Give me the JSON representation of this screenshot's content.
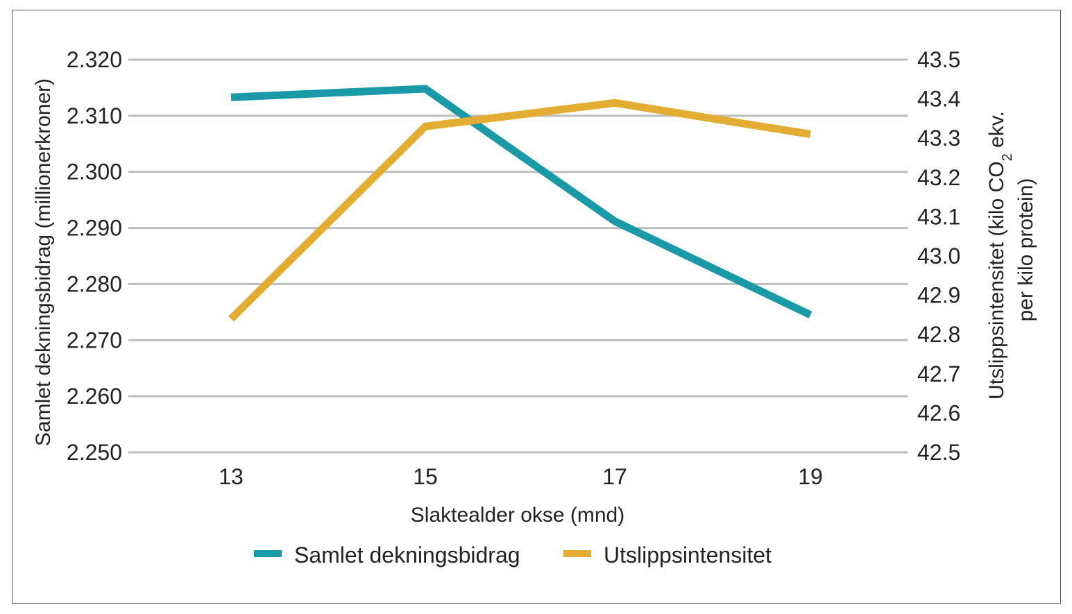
{
  "chart_data": {
    "type": "line",
    "x": [
      13,
      15,
      17,
      19
    ],
    "xlabel": "Slaktealder okse (mnd)",
    "ylabel_left": "Samlet dekningsbidrag (millionerkroner)",
    "ylabel_right_line1": "Utslippsintensitet (kilo CO",
    "ylabel_right_sub": "2",
    "ylabel_right_line1_end": " ekv.",
    "ylabel_right_line2": "per kilo protein)",
    "ylim_left": [
      2.25,
      2.32
    ],
    "ylim_right": [
      42.5,
      43.5
    ],
    "y_ticks_left": [
      "2.320",
      "2.310",
      "2.300",
      "2.290",
      "2.280",
      "2.270",
      "2.260",
      "2.250"
    ],
    "y_ticks_right": [
      "43.5",
      "43.4",
      "43.3",
      "43.2",
      "43.1",
      "43.0",
      "42.9",
      "42.8",
      "42.7",
      "42.6",
      "42.5"
    ],
    "x_ticks": [
      "13",
      "15",
      "17",
      "19"
    ],
    "grid": true,
    "legend_position": "bottom",
    "series": [
      {
        "name": "Samlet dekningsbidrag",
        "axis": "left",
        "color": "#1a9aa6",
        "values": [
          2.3133,
          2.3148,
          2.2912,
          2.2745
        ]
      },
      {
        "name": "Utslippsintensitet",
        "axis": "right",
        "color": "#e3ad33",
        "values": [
          42.84,
          43.33,
          43.39,
          43.31
        ]
      }
    ]
  }
}
